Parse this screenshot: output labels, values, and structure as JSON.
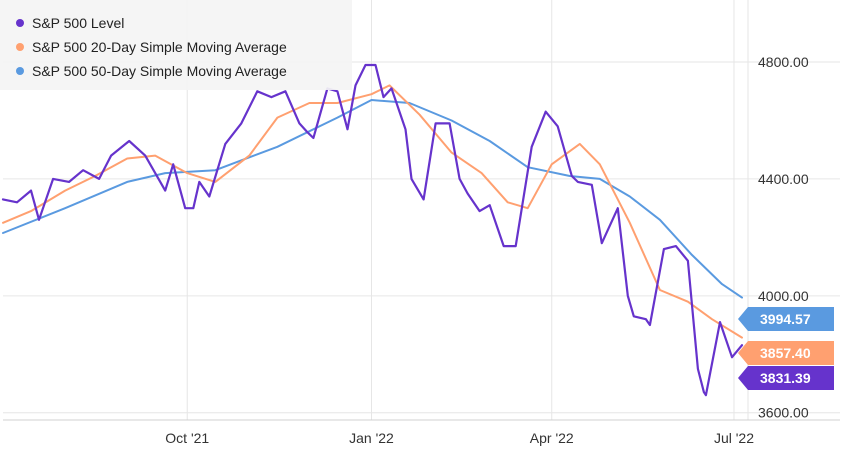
{
  "chart_data": {
    "type": "line",
    "title": "",
    "xlabel": "",
    "ylabel": "",
    "x_ticks": [
      {
        "date": "2021-10-01",
        "label": "Oct '21"
      },
      {
        "date": "2022-01-01",
        "label": "Jan '22"
      },
      {
        "date": "2022-04-01",
        "label": "Apr '22"
      },
      {
        "date": "2022-07-01",
        "label": "Jul '22"
      }
    ],
    "y_ticks": [
      {
        "value": 3600,
        "label": "3600.00"
      },
      {
        "value": 4000,
        "label": "4000.00"
      },
      {
        "value": 4400,
        "label": "4400.00"
      },
      {
        "value": 4800,
        "label": "4800.00"
      }
    ],
    "xlim": [
      "2021-07-01",
      "2022-07-08"
    ],
    "ylim": [
      3575,
      4985
    ],
    "grid": true,
    "legend_position": "top-left",
    "series": [
      {
        "name": "S&P 500 Level",
        "color": "#6633cc",
        "end_label": "3831.39",
        "points": [
          [
            "2021-07-01",
            4330
          ],
          [
            "2021-07-08",
            4320
          ],
          [
            "2021-07-15",
            4360
          ],
          [
            "2021-07-19",
            4260
          ],
          [
            "2021-07-26",
            4400
          ],
          [
            "2021-08-03",
            4390
          ],
          [
            "2021-08-10",
            4430
          ],
          [
            "2021-08-18",
            4400
          ],
          [
            "2021-08-24",
            4480
          ],
          [
            "2021-09-02",
            4530
          ],
          [
            "2021-09-10",
            4480
          ],
          [
            "2021-09-20",
            4360
          ],
          [
            "2021-09-24",
            4450
          ],
          [
            "2021-09-30",
            4300
          ],
          [
            "2021-10-04",
            4300
          ],
          [
            "2021-10-07",
            4390
          ],
          [
            "2021-10-12",
            4340
          ],
          [
            "2021-10-20",
            4520
          ],
          [
            "2021-10-28",
            4590
          ],
          [
            "2021-11-05",
            4700
          ],
          [
            "2021-11-12",
            4680
          ],
          [
            "2021-11-19",
            4700
          ],
          [
            "2021-11-26",
            4590
          ],
          [
            "2021-11-30",
            4560
          ],
          [
            "2021-12-03",
            4540
          ],
          [
            "2021-12-10",
            4710
          ],
          [
            "2021-12-15",
            4700
          ],
          [
            "2021-12-20",
            4570
          ],
          [
            "2021-12-24",
            4720
          ],
          [
            "2021-12-29",
            4790
          ],
          [
            "2022-01-03",
            4790
          ],
          [
            "2022-01-07",
            4680
          ],
          [
            "2022-01-11",
            4710
          ],
          [
            "2022-01-18",
            4570
          ],
          [
            "2022-01-21",
            4400
          ],
          [
            "2022-01-27",
            4330
          ],
          [
            "2022-02-02",
            4590
          ],
          [
            "2022-02-09",
            4590
          ],
          [
            "2022-02-14",
            4400
          ],
          [
            "2022-02-18",
            4350
          ],
          [
            "2022-02-24",
            4290
          ],
          [
            "2022-03-01",
            4310
          ],
          [
            "2022-03-08",
            4170
          ],
          [
            "2022-03-14",
            4170
          ],
          [
            "2022-03-22",
            4510
          ],
          [
            "2022-03-29",
            4630
          ],
          [
            "2022-04-04",
            4580
          ],
          [
            "2022-04-11",
            4410
          ],
          [
            "2022-04-14",
            4390
          ],
          [
            "2022-04-21",
            4380
          ],
          [
            "2022-04-26",
            4180
          ],
          [
            "2022-05-04",
            4300
          ],
          [
            "2022-05-09",
            4000
          ],
          [
            "2022-05-12",
            3930
          ],
          [
            "2022-05-18",
            3920
          ],
          [
            "2022-05-20",
            3900
          ],
          [
            "2022-05-27",
            4160
          ],
          [
            "2022-06-02",
            4170
          ],
          [
            "2022-06-08",
            4120
          ],
          [
            "2022-06-13",
            3750
          ],
          [
            "2022-06-16",
            3670
          ],
          [
            "2022-06-17",
            3660
          ],
          [
            "2022-06-24",
            3910
          ],
          [
            "2022-06-30",
            3790
          ],
          [
            "2022-07-05",
            3831
          ]
        ]
      },
      {
        "name": "S&P 500 20-Day Simple Moving Average",
        "color": "#ffa070",
        "end_label": "3857.40",
        "points": [
          [
            "2021-07-01",
            4250
          ],
          [
            "2021-07-15",
            4290
          ],
          [
            "2021-08-01",
            4360
          ],
          [
            "2021-08-16",
            4410
          ],
          [
            "2021-09-01",
            4470
          ],
          [
            "2021-09-15",
            4480
          ],
          [
            "2021-10-01",
            4420
          ],
          [
            "2021-10-15",
            4390
          ],
          [
            "2021-11-01",
            4480
          ],
          [
            "2021-11-15",
            4610
          ],
          [
            "2021-12-01",
            4660
          ],
          [
            "2021-12-15",
            4660
          ],
          [
            "2022-01-01",
            4690
          ],
          [
            "2022-01-10",
            4720
          ],
          [
            "2022-01-25",
            4620
          ],
          [
            "2022-02-10",
            4490
          ],
          [
            "2022-02-25",
            4420
          ],
          [
            "2022-03-10",
            4320
          ],
          [
            "2022-03-20",
            4300
          ],
          [
            "2022-04-01",
            4450
          ],
          [
            "2022-04-15",
            4520
          ],
          [
            "2022-04-25",
            4450
          ],
          [
            "2022-05-10",
            4250
          ],
          [
            "2022-05-25",
            4020
          ],
          [
            "2022-06-08",
            3980
          ],
          [
            "2022-06-20",
            3920
          ],
          [
            "2022-07-05",
            3857
          ]
        ]
      },
      {
        "name": "S&P 500 50-Day Simple Moving Average",
        "color": "#5a9ae0",
        "end_label": "3994.57",
        "points": [
          [
            "2021-07-01",
            4215
          ],
          [
            "2021-08-01",
            4300
          ],
          [
            "2021-09-01",
            4390
          ],
          [
            "2021-09-20",
            4420
          ],
          [
            "2021-10-15",
            4430
          ],
          [
            "2021-11-15",
            4510
          ],
          [
            "2021-12-15",
            4610
          ],
          [
            "2022-01-01",
            4670
          ],
          [
            "2022-01-20",
            4660
          ],
          [
            "2022-02-10",
            4600
          ],
          [
            "2022-03-01",
            4530
          ],
          [
            "2022-03-20",
            4440
          ],
          [
            "2022-04-10",
            4410
          ],
          [
            "2022-04-25",
            4400
          ],
          [
            "2022-05-10",
            4340
          ],
          [
            "2022-05-25",
            4260
          ],
          [
            "2022-06-10",
            4140
          ],
          [
            "2022-06-25",
            4040
          ],
          [
            "2022-07-05",
            3994
          ]
        ]
      }
    ]
  }
}
